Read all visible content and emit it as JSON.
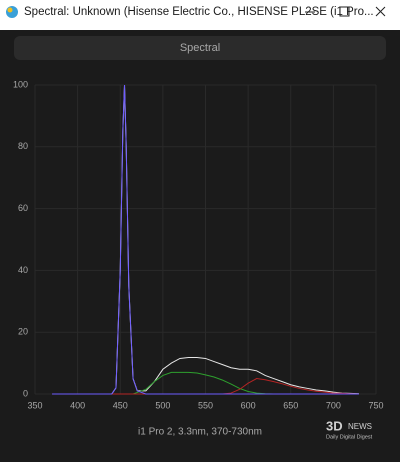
{
  "window": {
    "title": "Spectral: Unknown (Hisense Electric Co., HISENSE PL2SE (i1 Pro..."
  },
  "button": {
    "label": "Spectral"
  },
  "watermark": {
    "logo_a": "3D",
    "logo_b": "NEWS",
    "tagline": "Daily Digital Digest"
  },
  "chart_data": {
    "type": "line",
    "xlabel": "i1 Pro 2, 3.3nm, 370-730nm",
    "x": [
      370,
      400,
      430,
      440,
      445,
      450,
      453,
      455,
      457,
      460,
      465,
      470,
      480,
      490,
      500,
      510,
      520,
      530,
      540,
      550,
      560,
      570,
      580,
      590,
      600,
      610,
      620,
      630,
      640,
      650,
      660,
      670,
      680,
      690,
      700,
      710,
      720,
      730
    ],
    "series": [
      {
        "color": "#e6e6e6",
        "values": [
          0,
          0,
          0,
          0,
          2,
          40,
          85,
          100,
          80,
          35,
          5,
          1,
          1,
          4,
          8,
          10,
          11.5,
          11.8,
          11.8,
          11.5,
          10.5,
          9.5,
          8.5,
          8,
          8,
          7.5,
          6,
          5,
          4,
          3,
          2.3,
          1.8,
          1.3,
          1,
          0.6,
          0.3,
          0.2,
          0.1
        ]
      },
      {
        "color": "#2ea02e",
        "values": [
          0,
          0,
          0,
          0,
          0,
          0,
          0,
          0,
          0,
          0,
          0,
          0.5,
          1.5,
          4,
          6,
          7,
          7,
          7,
          6.8,
          6.2,
          5.5,
          4.5,
          3.2,
          1.8,
          0.8,
          0.3,
          0.1,
          0,
          0,
          0,
          0,
          0,
          0,
          0,
          0,
          0,
          0,
          0
        ]
      },
      {
        "color": "#b42424",
        "values": [
          0,
          0,
          0,
          0,
          0,
          0,
          0,
          0,
          0,
          0,
          0,
          0,
          0,
          0,
          0,
          0,
          0,
          0,
          0,
          0,
          0,
          0,
          0.3,
          1.5,
          3.5,
          5,
          4.6,
          4,
          3.3,
          2.5,
          1.8,
          1.3,
          0.9,
          0.6,
          0.3,
          0.2,
          0.1,
          0
        ]
      },
      {
        "color": "#6e5cff",
        "values": [
          0,
          0,
          0,
          0,
          2,
          40,
          85,
          100,
          80,
          35,
          5,
          1,
          0,
          0,
          0,
          0,
          0,
          0,
          0,
          0,
          0,
          0,
          0,
          0,
          0,
          0,
          0,
          0,
          0,
          0,
          0,
          0,
          0,
          0,
          0,
          0,
          0,
          0
        ]
      }
    ],
    "xlim": [
      350,
      750
    ],
    "xticks": [
      350,
      400,
      450,
      500,
      550,
      600,
      650,
      700,
      750
    ],
    "ylim": [
      0,
      100
    ],
    "yticks": [
      0,
      20,
      40,
      60,
      80,
      100
    ],
    "grid": true
  }
}
